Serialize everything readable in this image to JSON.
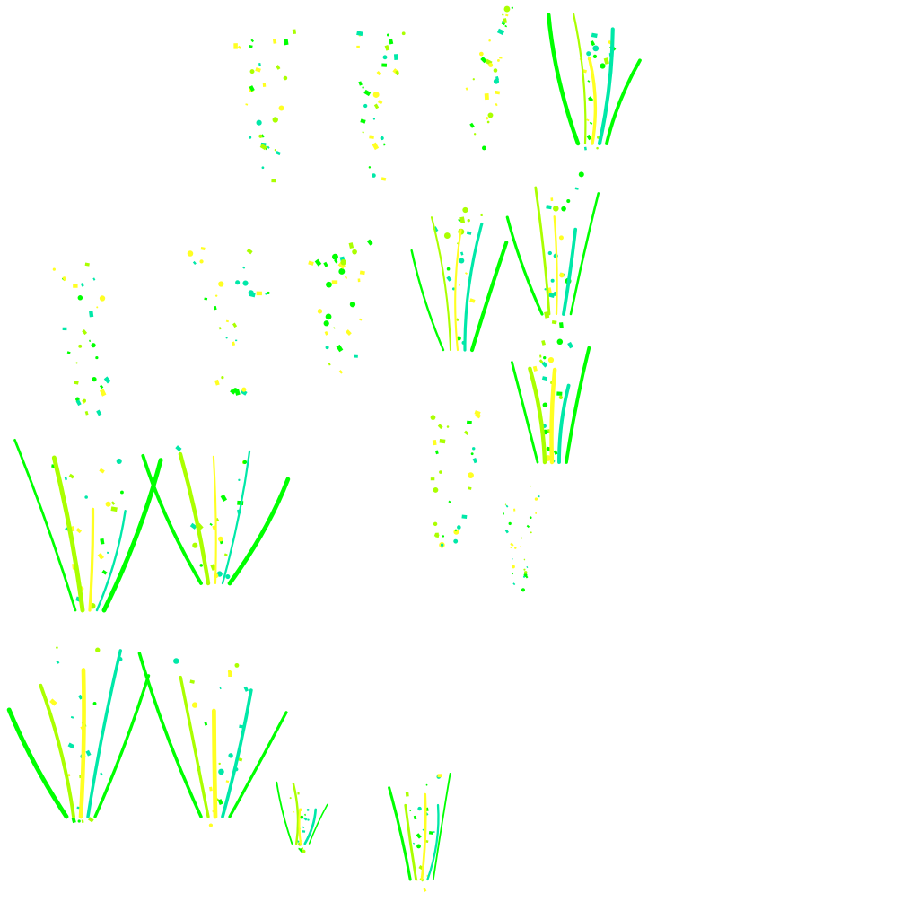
{
  "sprite_sheet": {
    "subject": "confetti-burst-animation-frames",
    "background": "#ffffff",
    "palette": {
      "green": "#00ff00",
      "lime": "#aaff00",
      "yellow": "#ffff22",
      "teal": "#00e8a8"
    }
  }
}
